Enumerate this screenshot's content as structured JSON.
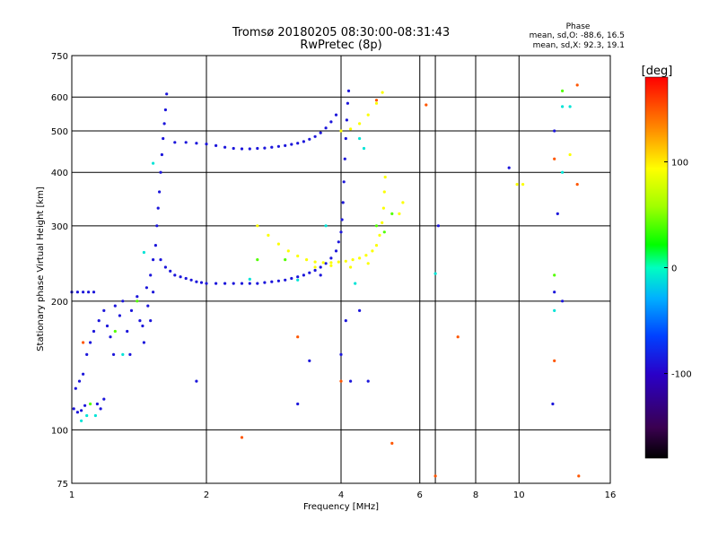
{
  "chart_data": {
    "type": "scatter",
    "title": "Tromsø 20180205 08:30:00-08:31:43",
    "subtitle": "RwPretec (8p)",
    "stats": {
      "heading": "Phase",
      "line_o": "mean, sd,O: -88.6, 16.5",
      "line_x": "mean, sd,X:  92.3, 19.1"
    },
    "xlabel": "Frequency [MHz]",
    "ylabel": "Stationary phase Virtual Height [km]",
    "x_scale": "log",
    "y_scale": "log",
    "xlim": [
      1,
      16
    ],
    "ylim": [
      75,
      750
    ],
    "grid": true,
    "x_ticks": [
      1,
      2,
      4,
      6,
      8,
      10,
      16
    ],
    "x_tick_labels": [
      "1",
      "2",
      "4",
      "6",
      "8",
      "10",
      "16"
    ],
    "x_extra_gridlines": [
      6.5
    ],
    "y_ticks": [
      75,
      100,
      200,
      300,
      400,
      500,
      600,
      750
    ],
    "y_tick_labels": [
      "75",
      "100",
      "200",
      "300",
      "400",
      "500",
      "600",
      "750"
    ],
    "colorbar": {
      "label": "[deg]",
      "range": [
        -180,
        180
      ],
      "ticks": [
        100,
        0,
        -100
      ],
      "tick_labels": [
        "100",
        "0",
        "-100"
      ]
    },
    "series": [
      {
        "phase": -88.6,
        "points": [
          {
            "x": 1.0,
            "y": 210
          },
          {
            "x": 1.03,
            "y": 210
          },
          {
            "x": 1.06,
            "y": 210
          },
          {
            "x": 1.09,
            "y": 210
          },
          {
            "x": 1.12,
            "y": 210
          },
          {
            "x": 1.01,
            "y": 112
          },
          {
            "x": 1.03,
            "y": 110
          },
          {
            "x": 1.05,
            "y": 111
          },
          {
            "x": 1.07,
            "y": 114
          },
          {
            "x": 1.02,
            "y": 125
          },
          {
            "x": 1.04,
            "y": 130
          },
          {
            "x": 1.06,
            "y": 135
          },
          {
            "x": 1.08,
            "y": 150
          },
          {
            "x": 1.1,
            "y": 160
          },
          {
            "x": 1.12,
            "y": 170
          },
          {
            "x": 1.15,
            "y": 180
          },
          {
            "x": 1.18,
            "y": 190
          },
          {
            "x": 1.2,
            "y": 175
          },
          {
            "x": 1.22,
            "y": 165
          },
          {
            "x": 1.25,
            "y": 195
          },
          {
            "x": 1.28,
            "y": 185
          },
          {
            "x": 1.3,
            "y": 200
          },
          {
            "x": 1.33,
            "y": 170
          },
          {
            "x": 1.36,
            "y": 190
          },
          {
            "x": 1.4,
            "y": 205
          },
          {
            "x": 1.42,
            "y": 180
          },
          {
            "x": 1.45,
            "y": 160
          },
          {
            "x": 1.48,
            "y": 195
          },
          {
            "x": 1.5,
            "y": 180
          },
          {
            "x": 1.52,
            "y": 210
          },
          {
            "x": 1.14,
            "y": 115
          },
          {
            "x": 1.16,
            "y": 112
          },
          {
            "x": 1.18,
            "y": 118
          },
          {
            "x": 1.24,
            "y": 150
          },
          {
            "x": 1.35,
            "y": 150
          },
          {
            "x": 1.44,
            "y": 175
          },
          {
            "x": 1.47,
            "y": 215
          },
          {
            "x": 1.5,
            "y": 230
          },
          {
            "x": 1.52,
            "y": 250
          },
          {
            "x": 1.54,
            "y": 270
          },
          {
            "x": 1.55,
            "y": 300
          },
          {
            "x": 1.56,
            "y": 330
          },
          {
            "x": 1.57,
            "y": 360
          },
          {
            "x": 1.58,
            "y": 400
          },
          {
            "x": 1.59,
            "y": 440
          },
          {
            "x": 1.6,
            "y": 480
          },
          {
            "x": 1.61,
            "y": 520
          },
          {
            "x": 1.62,
            "y": 560
          },
          {
            "x": 1.63,
            "y": 610
          },
          {
            "x": 1.58,
            "y": 250
          },
          {
            "x": 1.62,
            "y": 240
          },
          {
            "x": 1.66,
            "y": 235
          },
          {
            "x": 1.7,
            "y": 230
          },
          {
            "x": 1.75,
            "y": 228
          },
          {
            "x": 1.8,
            "y": 226
          },
          {
            "x": 1.85,
            "y": 224
          },
          {
            "x": 1.9,
            "y": 222
          },
          {
            "x": 1.95,
            "y": 221
          },
          {
            "x": 2.0,
            "y": 220
          },
          {
            "x": 2.1,
            "y": 220
          },
          {
            "x": 2.2,
            "y": 220
          },
          {
            "x": 2.3,
            "y": 220
          },
          {
            "x": 2.4,
            "y": 220
          },
          {
            "x": 2.5,
            "y": 220
          },
          {
            "x": 2.6,
            "y": 220
          },
          {
            "x": 2.7,
            "y": 221
          },
          {
            "x": 2.8,
            "y": 222
          },
          {
            "x": 2.9,
            "y": 223
          },
          {
            "x": 3.0,
            "y": 224
          },
          {
            "x": 3.1,
            "y": 226
          },
          {
            "x": 3.2,
            "y": 228
          },
          {
            "x": 3.3,
            "y": 230
          },
          {
            "x": 3.4,
            "y": 233
          },
          {
            "x": 3.5,
            "y": 236
          },
          {
            "x": 3.6,
            "y": 240
          },
          {
            "x": 3.7,
            "y": 245
          },
          {
            "x": 3.8,
            "y": 252
          },
          {
            "x": 3.9,
            "y": 262
          },
          {
            "x": 3.95,
            "y": 275
          },
          {
            "x": 4.0,
            "y": 290
          },
          {
            "x": 4.02,
            "y": 310
          },
          {
            "x": 4.04,
            "y": 340
          },
          {
            "x": 4.06,
            "y": 380
          },
          {
            "x": 4.08,
            "y": 430
          },
          {
            "x": 4.1,
            "y": 480
          },
          {
            "x": 4.12,
            "y": 530
          },
          {
            "x": 4.14,
            "y": 580
          },
          {
            "x": 4.16,
            "y": 620
          },
          {
            "x": 1.7,
            "y": 470
          },
          {
            "x": 1.8,
            "y": 470
          },
          {
            "x": 1.9,
            "y": 468
          },
          {
            "x": 2.0,
            "y": 466
          },
          {
            "x": 2.1,
            "y": 462
          },
          {
            "x": 2.2,
            "y": 458
          },
          {
            "x": 2.3,
            "y": 455
          },
          {
            "x": 2.4,
            "y": 454
          },
          {
            "x": 2.5,
            "y": 454
          },
          {
            "x": 2.6,
            "y": 455
          },
          {
            "x": 2.7,
            "y": 456
          },
          {
            "x": 2.8,
            "y": 458
          },
          {
            "x": 2.9,
            "y": 460
          },
          {
            "x": 3.0,
            "y": 462
          },
          {
            "x": 3.1,
            "y": 465
          },
          {
            "x": 3.2,
            "y": 468
          },
          {
            "x": 3.3,
            "y": 472
          },
          {
            "x": 3.4,
            "y": 478
          },
          {
            "x": 3.5,
            "y": 485
          },
          {
            "x": 3.6,
            "y": 495
          },
          {
            "x": 3.7,
            "y": 508
          },
          {
            "x": 3.8,
            "y": 525
          },
          {
            "x": 3.9,
            "y": 545
          },
          {
            "x": 3.6,
            "y": 230
          },
          {
            "x": 3.4,
            "y": 145
          },
          {
            "x": 3.2,
            "y": 115
          },
          {
            "x": 4.0,
            "y": 150
          },
          {
            "x": 4.1,
            "y": 180
          },
          {
            "x": 4.2,
            "y": 130
          },
          {
            "x": 4.4,
            "y": 190
          },
          {
            "x": 4.6,
            "y": 130
          },
          {
            "x": 6.6,
            "y": 300
          },
          {
            "x": 9.5,
            "y": 410
          },
          {
            "x": 12.0,
            "y": 500
          },
          {
            "x": 12.0,
            "y": 210
          },
          {
            "x": 12.5,
            "y": 200
          },
          {
            "x": 11.9,
            "y": 115
          },
          {
            "x": 12.2,
            "y": 320
          },
          {
            "x": 1.9,
            "y": 130
          }
        ]
      },
      {
        "phase": -10.0,
        "points": [
          {
            "x": 1.05,
            "y": 105
          },
          {
            "x": 1.08,
            "y": 108
          },
          {
            "x": 1.13,
            "y": 108
          },
          {
            "x": 1.3,
            "y": 150
          },
          {
            "x": 1.45,
            "y": 260
          },
          {
            "x": 1.52,
            "y": 420
          },
          {
            "x": 2.5,
            "y": 225
          },
          {
            "x": 3.2,
            "y": 224
          },
          {
            "x": 3.7,
            "y": 300
          },
          {
            "x": 4.3,
            "y": 220
          },
          {
            "x": 4.4,
            "y": 480
          },
          {
            "x": 4.5,
            "y": 455
          },
          {
            "x": 6.5,
            "y": 232
          },
          {
            "x": 12.0,
            "y": 190
          },
          {
            "x": 12.5,
            "y": 570
          },
          {
            "x": 13.0,
            "y": 570
          },
          {
            "x": 12.5,
            "y": 400
          }
        ]
      },
      {
        "phase": 40.0,
        "points": [
          {
            "x": 1.1,
            "y": 115
          },
          {
            "x": 1.25,
            "y": 170
          },
          {
            "x": 1.4,
            "y": 200
          },
          {
            "x": 2.6,
            "y": 250
          },
          {
            "x": 3.0,
            "y": 250
          },
          {
            "x": 4.8,
            "y": 300
          },
          {
            "x": 5.0,
            "y": 290
          },
          {
            "x": 5.2,
            "y": 320
          },
          {
            "x": 12.5,
            "y": 620
          },
          {
            "x": 12.0,
            "y": 230
          }
        ]
      },
      {
        "phase": 92.3,
        "points": [
          {
            "x": 2.6,
            "y": 300
          },
          {
            "x": 2.75,
            "y": 285
          },
          {
            "x": 2.9,
            "y": 272
          },
          {
            "x": 3.05,
            "y": 262
          },
          {
            "x": 3.2,
            "y": 255
          },
          {
            "x": 3.35,
            "y": 250
          },
          {
            "x": 3.5,
            "y": 247
          },
          {
            "x": 3.65,
            "y": 246
          },
          {
            "x": 3.8,
            "y": 246
          },
          {
            "x": 3.95,
            "y": 247
          },
          {
            "x": 4.1,
            "y": 248
          },
          {
            "x": 4.25,
            "y": 250
          },
          {
            "x": 4.4,
            "y": 252
          },
          {
            "x": 4.55,
            "y": 256
          },
          {
            "x": 4.7,
            "y": 262
          },
          {
            "x": 4.8,
            "y": 270
          },
          {
            "x": 4.88,
            "y": 285
          },
          {
            "x": 4.94,
            "y": 305
          },
          {
            "x": 4.98,
            "y": 330
          },
          {
            "x": 5.0,
            "y": 360
          },
          {
            "x": 5.02,
            "y": 390
          },
          {
            "x": 3.5,
            "y": 240
          },
          {
            "x": 3.8,
            "y": 242
          },
          {
            "x": 4.2,
            "y": 240
          },
          {
            "x": 4.6,
            "y": 245
          },
          {
            "x": 4.0,
            "y": 500
          },
          {
            "x": 4.2,
            "y": 505
          },
          {
            "x": 4.4,
            "y": 520
          },
          {
            "x": 4.6,
            "y": 545
          },
          {
            "x": 4.8,
            "y": 580
          },
          {
            "x": 4.95,
            "y": 615
          },
          {
            "x": 5.4,
            "y": 320
          },
          {
            "x": 5.5,
            "y": 340
          },
          {
            "x": 9.9,
            "y": 375
          },
          {
            "x": 10.2,
            "y": 375
          },
          {
            "x": 13.0,
            "y": 440
          }
        ]
      },
      {
        "phase": 150.0,
        "points": [
          {
            "x": 1.06,
            "y": 160
          },
          {
            "x": 2.4,
            "y": 96
          },
          {
            "x": 3.2,
            "y": 165
          },
          {
            "x": 5.2,
            "y": 93
          },
          {
            "x": 6.5,
            "y": 78
          },
          {
            "x": 7.3,
            "y": 165
          },
          {
            "x": 6.2,
            "y": 575
          },
          {
            "x": 12.0,
            "y": 430
          },
          {
            "x": 12.0,
            "y": 145
          },
          {
            "x": 13.5,
            "y": 640
          },
          {
            "x": 13.5,
            "y": 375
          },
          {
            "x": 13.6,
            "y": 78
          },
          {
            "x": 4.0,
            "y": 130
          },
          {
            "x": 4.8,
            "y": 590
          }
        ]
      }
    ]
  }
}
